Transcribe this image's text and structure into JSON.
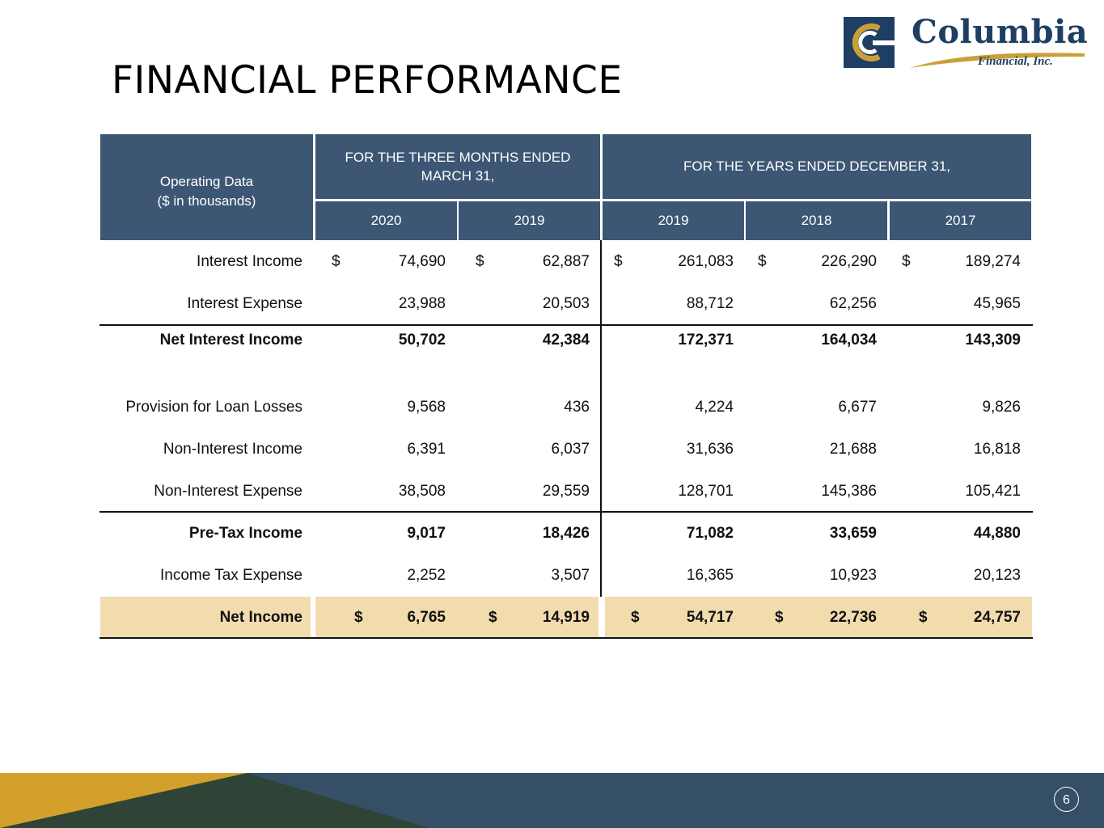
{
  "title": "FINANCIAL PERFORMANCE",
  "logo": {
    "name": "Columbia",
    "subtitle": "Financial, Inc."
  },
  "table": {
    "corner_label_1": "Operating Data",
    "corner_label_2": "($ in thousands)",
    "group_1": {
      "line1": "FOR THE THREE MONTHS ENDED",
      "line2": "MARCH 31,"
    },
    "group_2": "FOR THE YEARS ENDED DECEMBER 31,",
    "years": [
      "2020",
      "2019",
      "2019",
      "2018",
      "2017"
    ],
    "currency_symbol": "$",
    "rows": [
      {
        "label": "Interest Income",
        "values": [
          "74,690",
          "62,887",
          "261,083",
          "226,290",
          "189,274"
        ]
      },
      {
        "label": "Interest Expense",
        "values": [
          "23,988",
          "20,503",
          "88,712",
          "62,256",
          "45,965"
        ]
      },
      {
        "label": "Net Interest Income",
        "values": [
          "50,702",
          "42,384",
          "172,371",
          "164,034",
          "143,309"
        ]
      },
      {
        "label": "Provision for Loan Losses",
        "values": [
          "9,568",
          "436",
          "4,224",
          "6,677",
          "9,826"
        ]
      },
      {
        "label": "Non-Interest Income",
        "values": [
          "6,391",
          "6,037",
          "31,636",
          "21,688",
          "16,818"
        ]
      },
      {
        "label": "Non-Interest Expense",
        "values": [
          "38,508",
          "29,559",
          "128,701",
          "145,386",
          "105,421"
        ]
      },
      {
        "label": "Pre-Tax Income",
        "values": [
          "9,017",
          "18,426",
          "71,082",
          "33,659",
          "44,880"
        ]
      },
      {
        "label": "Income Tax Expense",
        "values": [
          "2,252",
          "3,507",
          "16,365",
          "10,923",
          "20,123"
        ]
      },
      {
        "label": "Net Income",
        "values": [
          "6,765",
          "14,919",
          "54,717",
          "22,736",
          "24,757"
        ]
      }
    ]
  },
  "page_number": "6",
  "colors": {
    "header": "#3c5674",
    "highlight": "#f2dcae",
    "footer_gold": "#d4a02c",
    "footer_navy": "#344f66"
  }
}
